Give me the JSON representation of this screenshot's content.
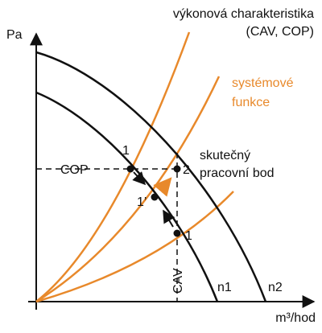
{
  "title": {
    "line1": "výkonová charakteristika",
    "line2": "(CAV, COP)"
  },
  "axes": {
    "y": "Pa",
    "x": "m³/hod"
  },
  "system_label": {
    "line1": "systémové",
    "line2": "funkce"
  },
  "operating_label": {
    "line1": "skutečný",
    "line2": "pracovní bod"
  },
  "lines": {
    "cop": "COP",
    "cav": "CAV"
  },
  "curves": {
    "n1": "n1",
    "n2": "n2"
  },
  "points": {
    "p1_top": "1",
    "p2": "2",
    "p1_mid": "1’",
    "p1_low": "1"
  }
}
